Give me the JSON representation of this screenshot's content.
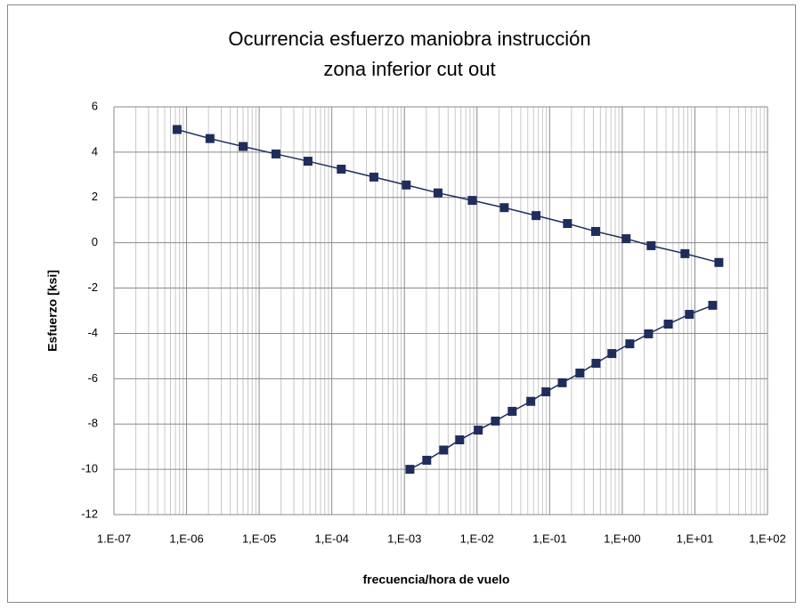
{
  "chart_data": {
    "type": "line",
    "title": [
      "Ocurrencia esfuerzo maniobra instrucción",
      "zona inferior cut out"
    ],
    "xlabel": "frecuencia/hora de vuelo",
    "ylabel": "Esfuerzo [ksi]",
    "xscale": "log",
    "grid": true,
    "minor_grid": true,
    "xlim": [
      1e-07,
      100
    ],
    "xticks": [
      {
        "value": 1e-07,
        "label": "1.E-07"
      },
      {
        "value": 1e-06,
        "label": "1,E-06"
      },
      {
        "value": 1e-05,
        "label": "1,E-05"
      },
      {
        "value": 0.0001,
        "label": "1,E-04"
      },
      {
        "value": 0.001,
        "label": "1,E-03"
      },
      {
        "value": 0.01,
        "label": "1,E-02"
      },
      {
        "value": 0.1,
        "label": "1,E-01"
      },
      {
        "value": 1,
        "label": "1,E+00"
      },
      {
        "value": 10,
        "label": "1,E+01"
      },
      {
        "value": 100,
        "label": "1,E+02"
      }
    ],
    "ylim": [
      -12,
      6
    ],
    "yticks": [
      6,
      4,
      2,
      0,
      -2,
      -4,
      -6,
      -8,
      -10,
      -12
    ],
    "series": [
      {
        "color": "#1f2d5c",
        "x": [
          7.4e-07,
          2.1e-06,
          6e-06,
          1.7e-05,
          4.7e-05,
          0.000135,
          0.00038,
          0.00106,
          0.0029,
          0.0086,
          0.0237,
          0.065,
          0.176,
          0.43,
          1.13,
          2.5,
          7.3,
          21.4
        ],
        "values": [
          5.0,
          4.6,
          4.25,
          3.92,
          3.6,
          3.25,
          2.9,
          2.55,
          2.2,
          1.87,
          1.55,
          1.2,
          0.85,
          0.5,
          0.18,
          -0.13,
          -0.48,
          -0.87
        ]
      },
      {
        "color": "#1f2d5c",
        "x": [
          0.00119,
          0.00203,
          0.00347,
          0.00577,
          0.0104,
          0.0179,
          0.0305,
          0.055,
          0.089,
          0.149,
          0.261,
          0.435,
          0.72,
          1.27,
          2.3,
          4.3,
          8.4,
          17.6
        ],
        "values": [
          -10.0,
          -9.6,
          -9.15,
          -8.7,
          -8.27,
          -7.87,
          -7.44,
          -7.0,
          -6.58,
          -6.18,
          -5.75,
          -5.32,
          -4.89,
          -4.46,
          -4.02,
          -3.59,
          -3.16,
          -2.76
        ]
      }
    ]
  }
}
